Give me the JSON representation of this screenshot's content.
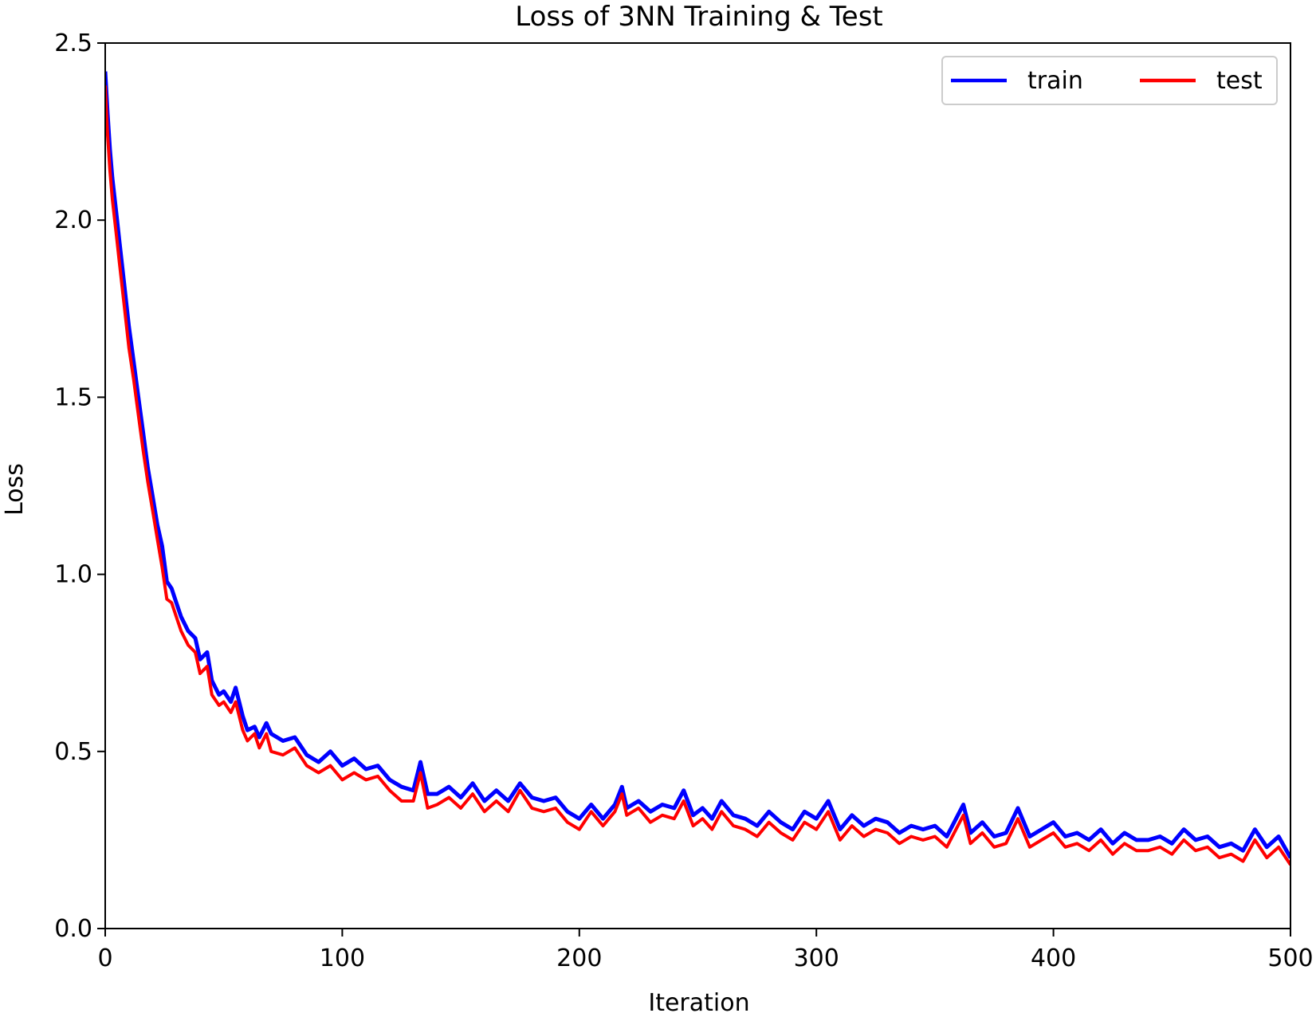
{
  "chart_data": {
    "type": "line",
    "title": "Loss of 3NN Training & Test",
    "xlabel": "Iteration",
    "ylabel": "Loss",
    "xlim": [
      0,
      500
    ],
    "ylim": [
      0.0,
      2.5
    ],
    "xticks": [
      0,
      100,
      200,
      300,
      400,
      500
    ],
    "xtick_labels": [
      "0",
      "100",
      "200",
      "300",
      "400",
      "500"
    ],
    "yticks": [
      0.0,
      0.5,
      1.0,
      1.5,
      2.0,
      2.5
    ],
    "ytick_labels": [
      "0.0",
      "0.5",
      "1.0",
      "1.5",
      "2.0",
      "2.5"
    ],
    "grid": false,
    "legend": {
      "placement": "top-right",
      "columns": 2
    },
    "series": [
      {
        "name": "train",
        "color": "#0000ff",
        "x": [
          0,
          1,
          2,
          3,
          4,
          5,
          6,
          8,
          10,
          12,
          14,
          16,
          18,
          20,
          22,
          24,
          26,
          28,
          30,
          32,
          35,
          38,
          40,
          43,
          45,
          48,
          50,
          53,
          55,
          58,
          60,
          63,
          65,
          68,
          70,
          75,
          80,
          85,
          90,
          95,
          100,
          105,
          110,
          115,
          120,
          125,
          130,
          133,
          136,
          140,
          145,
          150,
          155,
          160,
          165,
          170,
          175,
          180,
          185,
          190,
          195,
          200,
          205,
          210,
          215,
          218,
          220,
          225,
          230,
          235,
          240,
          244,
          248,
          252,
          256,
          260,
          265,
          270,
          275,
          280,
          285,
          290,
          295,
          300,
          305,
          310,
          315,
          320,
          325,
          330,
          335,
          340,
          345,
          350,
          355,
          362,
          365,
          370,
          375,
          380,
          385,
          390,
          395,
          400,
          405,
          410,
          415,
          420,
          425,
          430,
          435,
          440,
          445,
          450,
          455,
          460,
          465,
          470,
          475,
          480,
          485,
          490,
          495,
          500
        ],
        "values": [
          2.42,
          2.3,
          2.2,
          2.12,
          2.06,
          2.0,
          1.94,
          1.82,
          1.7,
          1.6,
          1.5,
          1.4,
          1.3,
          1.22,
          1.14,
          1.08,
          0.98,
          0.96,
          0.92,
          0.88,
          0.84,
          0.82,
          0.76,
          0.78,
          0.7,
          0.66,
          0.67,
          0.64,
          0.68,
          0.6,
          0.56,
          0.57,
          0.54,
          0.58,
          0.55,
          0.53,
          0.54,
          0.49,
          0.47,
          0.5,
          0.46,
          0.48,
          0.45,
          0.46,
          0.42,
          0.4,
          0.39,
          0.47,
          0.38,
          0.38,
          0.4,
          0.37,
          0.41,
          0.36,
          0.39,
          0.36,
          0.41,
          0.37,
          0.36,
          0.37,
          0.33,
          0.31,
          0.35,
          0.31,
          0.35,
          0.4,
          0.34,
          0.36,
          0.33,
          0.35,
          0.34,
          0.39,
          0.32,
          0.34,
          0.31,
          0.36,
          0.32,
          0.31,
          0.29,
          0.33,
          0.3,
          0.28,
          0.33,
          0.31,
          0.36,
          0.28,
          0.32,
          0.29,
          0.31,
          0.3,
          0.27,
          0.29,
          0.28,
          0.29,
          0.26,
          0.35,
          0.27,
          0.3,
          0.26,
          0.27,
          0.34,
          0.26,
          0.28,
          0.3,
          0.26,
          0.27,
          0.25,
          0.28,
          0.24,
          0.27,
          0.25,
          0.25,
          0.26,
          0.24,
          0.28,
          0.25,
          0.26,
          0.23,
          0.24,
          0.22,
          0.28,
          0.23,
          0.26,
          0.2
        ]
      },
      {
        "name": "test",
        "color": "#ff0000",
        "x": [
          0,
          1,
          2,
          3,
          4,
          5,
          6,
          8,
          10,
          12,
          14,
          16,
          18,
          20,
          22,
          24,
          26,
          28,
          30,
          32,
          35,
          38,
          40,
          43,
          45,
          48,
          50,
          53,
          55,
          58,
          60,
          63,
          65,
          68,
          70,
          75,
          80,
          85,
          90,
          95,
          100,
          105,
          110,
          115,
          120,
          125,
          130,
          133,
          136,
          140,
          145,
          150,
          155,
          160,
          165,
          170,
          175,
          180,
          185,
          190,
          195,
          200,
          205,
          210,
          215,
          218,
          220,
          225,
          230,
          235,
          240,
          244,
          248,
          252,
          256,
          260,
          265,
          270,
          275,
          280,
          285,
          290,
          295,
          300,
          305,
          310,
          315,
          320,
          325,
          330,
          335,
          340,
          345,
          350,
          355,
          362,
          365,
          370,
          375,
          380,
          385,
          390,
          395,
          400,
          405,
          410,
          415,
          420,
          425,
          430,
          435,
          440,
          445,
          450,
          455,
          460,
          465,
          470,
          475,
          480,
          485,
          490,
          495,
          500
        ],
        "values": [
          2.38,
          2.24,
          2.14,
          2.06,
          2.0,
          1.94,
          1.88,
          1.76,
          1.64,
          1.55,
          1.45,
          1.35,
          1.26,
          1.18,
          1.1,
          1.02,
          0.93,
          0.92,
          0.88,
          0.84,
          0.8,
          0.78,
          0.72,
          0.74,
          0.66,
          0.63,
          0.64,
          0.61,
          0.64,
          0.56,
          0.53,
          0.55,
          0.51,
          0.55,
          0.5,
          0.49,
          0.51,
          0.46,
          0.44,
          0.46,
          0.42,
          0.44,
          0.42,
          0.43,
          0.39,
          0.36,
          0.36,
          0.44,
          0.34,
          0.35,
          0.37,
          0.34,
          0.38,
          0.33,
          0.36,
          0.33,
          0.39,
          0.34,
          0.33,
          0.34,
          0.3,
          0.28,
          0.33,
          0.29,
          0.33,
          0.38,
          0.32,
          0.34,
          0.3,
          0.32,
          0.31,
          0.36,
          0.29,
          0.31,
          0.28,
          0.33,
          0.29,
          0.28,
          0.26,
          0.3,
          0.27,
          0.25,
          0.3,
          0.28,
          0.33,
          0.25,
          0.29,
          0.26,
          0.28,
          0.27,
          0.24,
          0.26,
          0.25,
          0.26,
          0.23,
          0.32,
          0.24,
          0.27,
          0.23,
          0.24,
          0.31,
          0.23,
          0.25,
          0.27,
          0.23,
          0.24,
          0.22,
          0.25,
          0.21,
          0.24,
          0.22,
          0.22,
          0.23,
          0.21,
          0.25,
          0.22,
          0.23,
          0.2,
          0.21,
          0.19,
          0.25,
          0.2,
          0.23,
          0.18
        ]
      }
    ]
  }
}
